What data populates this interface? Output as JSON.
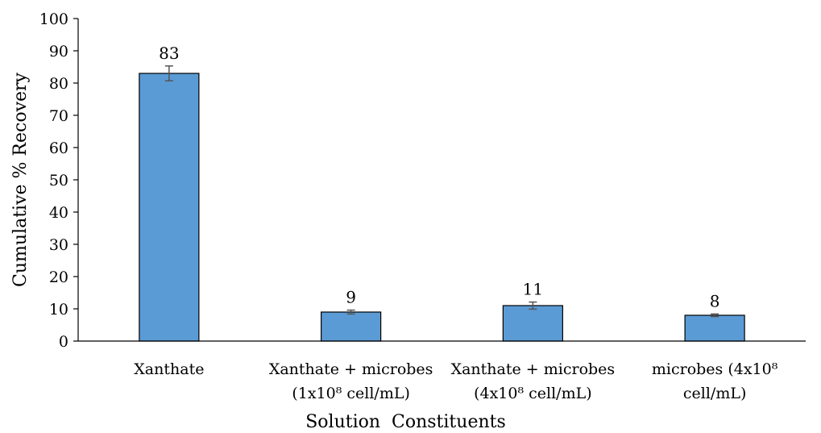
{
  "chart_data": {
    "type": "bar",
    "categories": [
      [
        "Xanthate"
      ],
      [
        "Xanthate + microbes",
        "(1x10⁸ cell/mL)"
      ],
      [
        "Xanthate + microbes",
        "(4x10⁸ cell/mL)"
      ],
      [
        "microbes (4x10⁸",
        "cell/mL)"
      ]
    ],
    "values": [
      83,
      9,
      11,
      8
    ],
    "error": [
      2.3,
      0.6,
      1.1,
      0.4
    ],
    "data_labels": [
      "83",
      "9",
      "11",
      "8"
    ],
    "xlabel": "Solution  Constituents",
    "ylabel": "Cumulative % Recovery",
    "ylim": [
      0,
      100
    ],
    "yticks": [
      0,
      10,
      20,
      30,
      40,
      50,
      60,
      70,
      80,
      90,
      100
    ],
    "grid": false,
    "legend": "none",
    "bar_color": "#5b9bd5",
    "bar_edge_color": "#000000",
    "error_bar_color": "#555555"
  }
}
